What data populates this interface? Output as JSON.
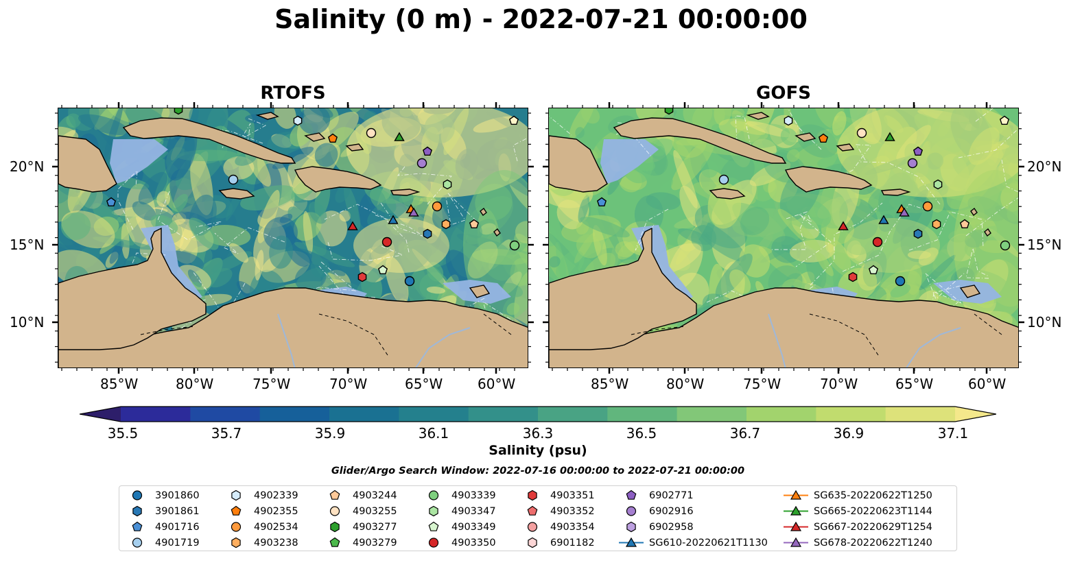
{
  "title": "Salinity (0 m) - 2022-07-21 00:00:00",
  "panels": [
    {
      "title": "RTOFS"
    },
    {
      "title": "GOFS"
    }
  ],
  "map": {
    "lon_ticks": [
      "85°W",
      "80°W",
      "75°W",
      "70°W",
      "65°W",
      "60°W"
    ],
    "lat_ticks": [
      "20°N",
      "15°N",
      "10°N"
    ],
    "extent": {
      "lon": [
        -89,
        -58
      ],
      "lat": [
        7,
        24
      ]
    },
    "land_color": "#d2b48c",
    "shelf_color": "#95b4e3"
  },
  "colorbar": {
    "label": "Salinity (psu)",
    "ticks": [
      "35.5",
      "35.7",
      "35.9",
      "36.1",
      "36.3",
      "36.5",
      "36.7",
      "36.9",
      "37.1"
    ],
    "range": [
      35.4,
      37.2
    ],
    "colors": [
      "#2d1e6a",
      "#2c2b9a",
      "#1f4aa3",
      "#16609a",
      "#1a7192",
      "#24808d",
      "#33908a",
      "#49a384",
      "#61b67d",
      "#82c778",
      "#a2d36d",
      "#c1dc6e",
      "#dde27a",
      "#f4e88b"
    ],
    "extend": "both"
  },
  "search_window": "Glider/Argo Search Window: 2022-07-16 00:00:00 to 2022-07-21 00:00:00",
  "legend": [
    {
      "label": "3901860",
      "marker": "circle",
      "color": "#1f77b4"
    },
    {
      "label": "3901861",
      "marker": "hexagon",
      "color": "#2878b5"
    },
    {
      "label": "4901716",
      "marker": "pentagon",
      "color": "#4a90d6"
    },
    {
      "label": "4901719",
      "marker": "circle",
      "color": "#a6cfee"
    },
    {
      "label": "4902339",
      "marker": "hexagon",
      "color": "#d6ecfb"
    },
    {
      "label": "4902355",
      "marker": "pentagon",
      "color": "#ff7f0e"
    },
    {
      "label": "4902534",
      "marker": "circle",
      "color": "#ff9a3c"
    },
    {
      "label": "4903238",
      "marker": "hexagon",
      "color": "#ffae5e"
    },
    {
      "label": "4903244",
      "marker": "pentagon",
      "color": "#ffc999"
    },
    {
      "label": "4903255",
      "marker": "circle",
      "color": "#ffe2c2"
    },
    {
      "label": "4903277",
      "marker": "hexagon",
      "color": "#2ca02c"
    },
    {
      "label": "4903279",
      "marker": "pentagon",
      "color": "#4bb84b"
    },
    {
      "label": "4903339",
      "marker": "circle",
      "color": "#7fd07f"
    },
    {
      "label": "4903347",
      "marker": "hexagon",
      "color": "#abe5a2"
    },
    {
      "label": "4903349",
      "marker": "pentagon",
      "color": "#d8f5cf"
    },
    {
      "label": "4903350",
      "marker": "circle",
      "color": "#d62728"
    },
    {
      "label": "4903351",
      "marker": "hexagon",
      "color": "#e03a3a"
    },
    {
      "label": "4903352",
      "marker": "pentagon",
      "color": "#ee6e6e"
    },
    {
      "label": "4903354",
      "marker": "circle",
      "color": "#f4a1a1"
    },
    {
      "label": "6901182",
      "marker": "hexagon",
      "color": "#fcd6d6"
    },
    {
      "label": "6902771",
      "marker": "pentagon",
      "color": "#8c5fc2"
    },
    {
      "label": "6902916",
      "marker": "circle",
      "color": "#a57fd0"
    },
    {
      "label": "6902958",
      "marker": "hexagon",
      "color": "#bda0e0"
    },
    {
      "label": "SG610-20220621T1130",
      "marker": "triangle-line",
      "color": "#1f77b4"
    },
    {
      "label": "SG635-20220622T1250",
      "marker": "triangle-line",
      "color": "#ff7f0e"
    },
    {
      "label": "SG665-20220623T1144",
      "marker": "triangle-line",
      "color": "#2ca02c"
    },
    {
      "label": "SG667-20220629T1254",
      "marker": "triangle-line",
      "color": "#d62728"
    },
    {
      "label": "SG678-20220622T1240",
      "marker": "triangle-line",
      "color": "#9467bd"
    }
  ]
}
